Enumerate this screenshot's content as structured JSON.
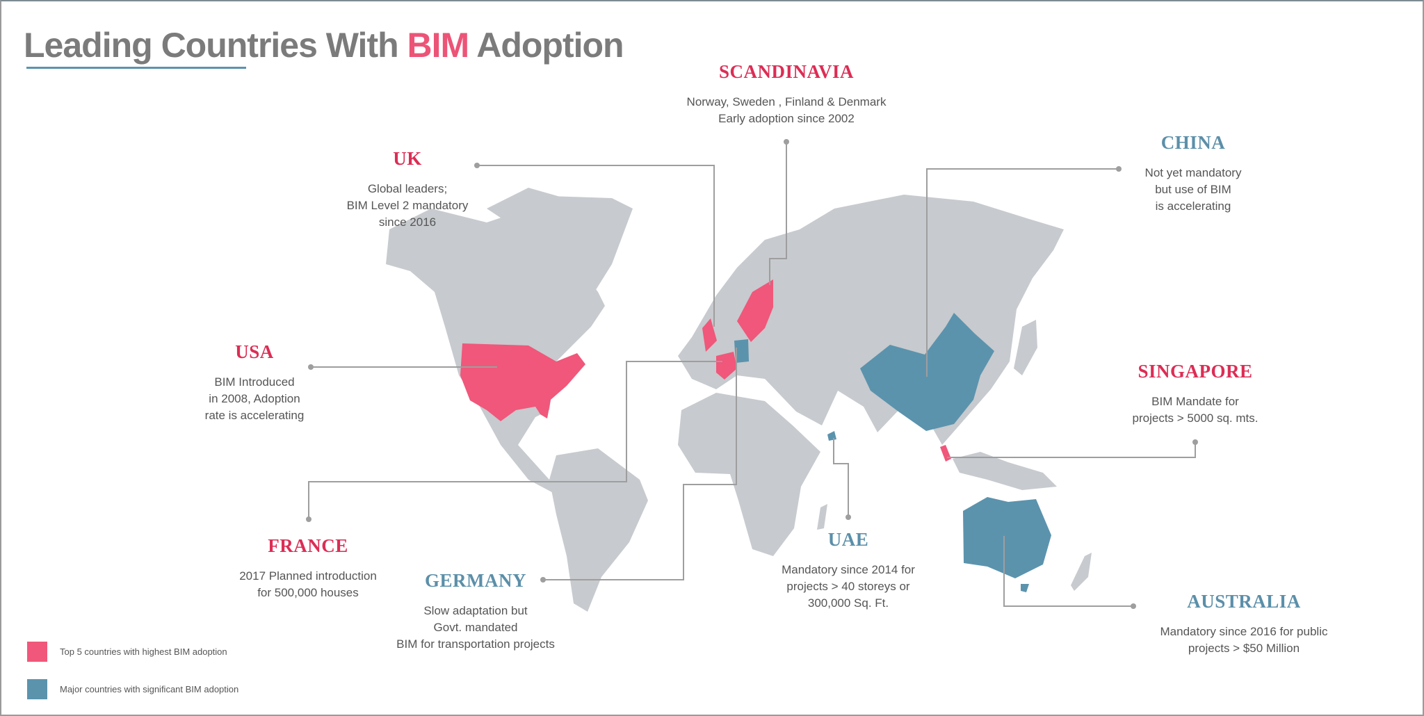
{
  "title": {
    "prefix": "Leading Countries With ",
    "accent": "BIM",
    "suffix": " Adoption"
  },
  "colors": {
    "top5": "#f0577a",
    "major": "#5b93ad",
    "land": "#c7cace",
    "label_red": "#dc2d55",
    "label_teal": "#5b8fa9",
    "leader_line": "#9e9e9e"
  },
  "callouts": [
    {
      "id": "scandinavia",
      "title": "SCANDINAVIA",
      "category": "top5",
      "lines": [
        "Norway, Sweden , Finland & Denmark",
        "Early adoption since 2002"
      ]
    },
    {
      "id": "uk",
      "title": "UK",
      "category": "top5",
      "lines": [
        "Global leaders;",
        "BIM Level 2 mandatory",
        "since 2016"
      ]
    },
    {
      "id": "china",
      "title": "CHINA",
      "category": "major",
      "lines": [
        "Not yet mandatory",
        "but use of BIM",
        "is accelerating"
      ]
    },
    {
      "id": "usa",
      "title": "USA",
      "category": "top5",
      "lines": [
        "BIM Introduced",
        "in 2008, Adoption",
        "rate is accelerating"
      ]
    },
    {
      "id": "singapore",
      "title": "SINGAPORE",
      "category": "top5",
      "lines": [
        "BIM Mandate for",
        "projects > 5000 sq. mts."
      ]
    },
    {
      "id": "france",
      "title": "FRANCE",
      "category": "top5",
      "lines": [
        "2017 Planned introduction",
        "for 500,000 houses"
      ]
    },
    {
      "id": "germany",
      "title": "GERMANY",
      "category": "major",
      "lines": [
        "Slow adaptation but",
        "Govt. mandated",
        "BIM for transportation projects"
      ]
    },
    {
      "id": "uae",
      "title": "UAE",
      "category": "major",
      "lines": [
        "Mandatory since 2014 for",
        "projects > 40 storeys or",
        "300,000 Sq. Ft."
      ]
    },
    {
      "id": "australia",
      "title": "AUSTRALIA",
      "category": "major",
      "lines": [
        "Mandatory since 2016  for public",
        "projects > $50 Million"
      ]
    }
  ],
  "legend": [
    {
      "label": "Top 5 countries with highest BIM adoption",
      "color": "#f0577a"
    },
    {
      "label": "Major countries with significant BIM adoption",
      "color": "#5b93ad"
    }
  ]
}
